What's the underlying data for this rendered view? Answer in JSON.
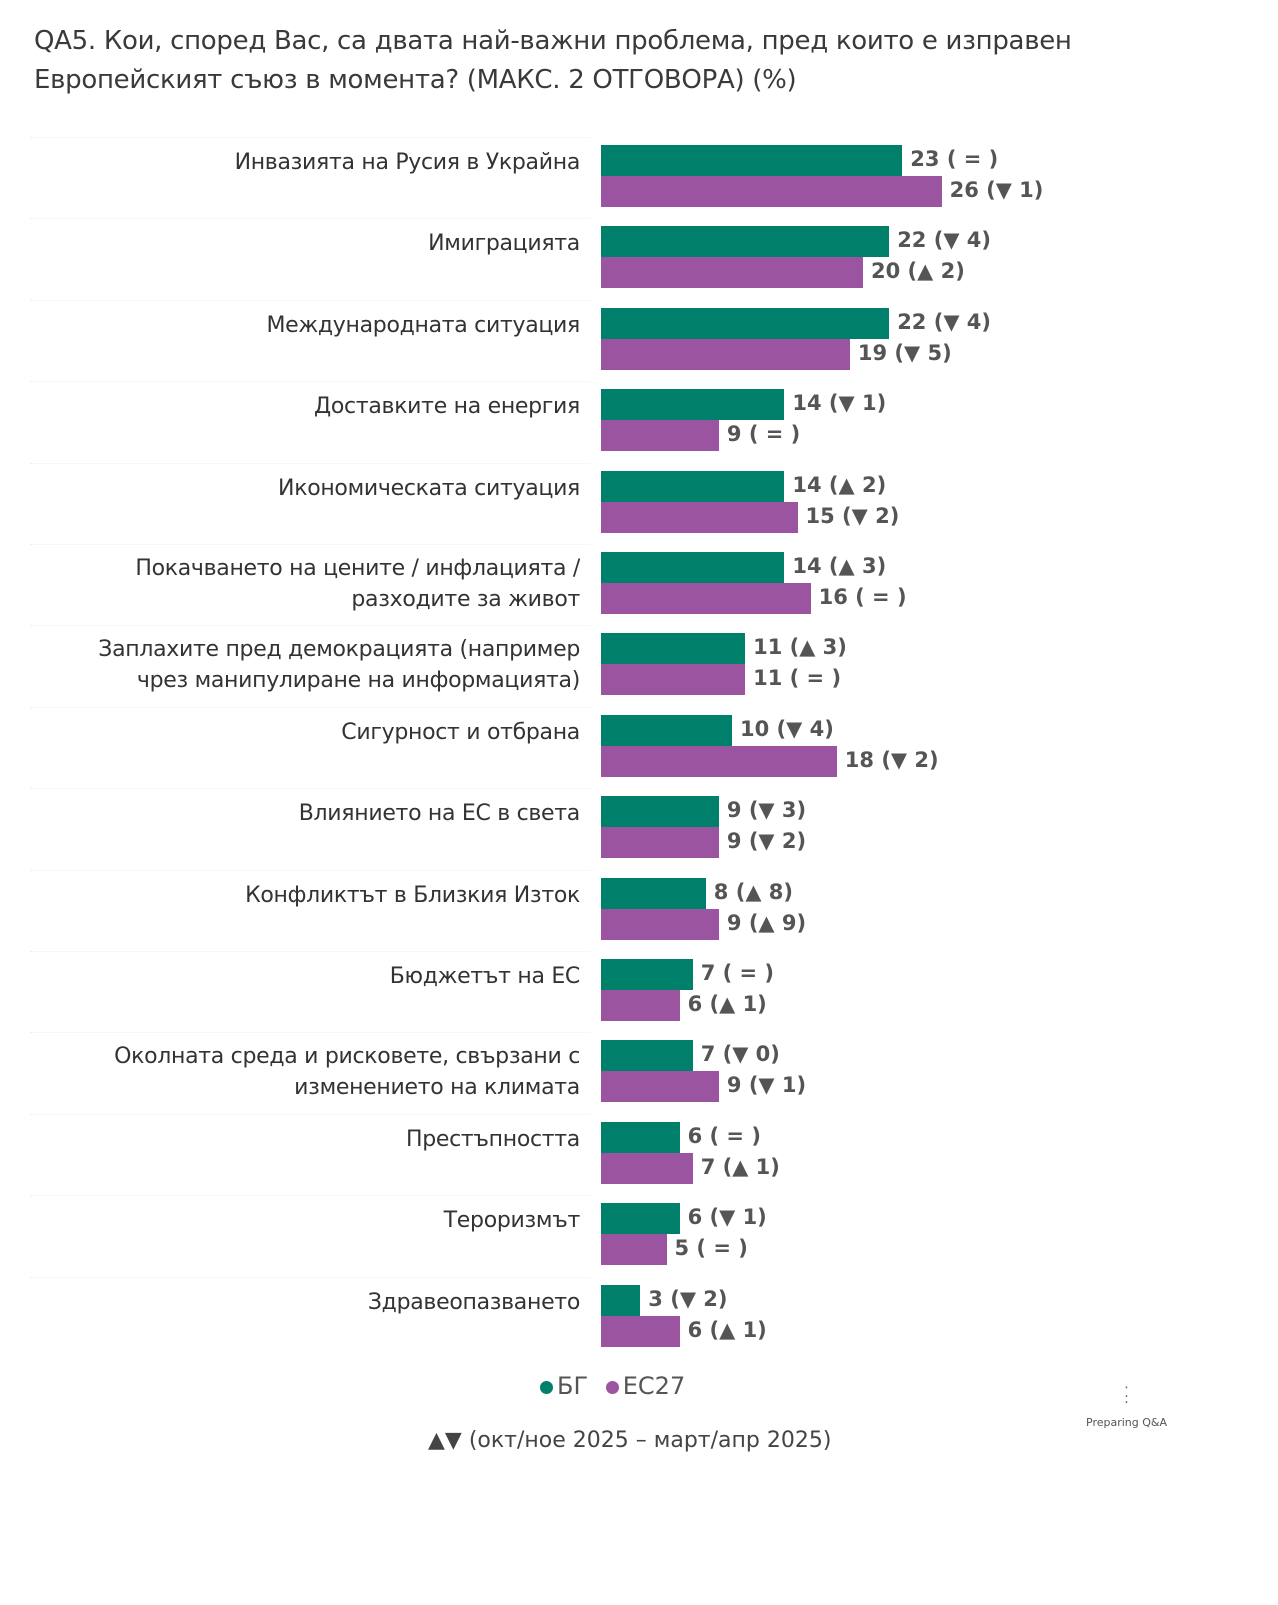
{
  "title": "QA5. Кои, според Вас, са двата най-важни проблема, пред които е изправен Европейският съюз в момента? (МАКС. 2 ОТГОВОРА) (%)",
  "chart_data": {
    "type": "bar",
    "orientation": "horizontal",
    "title": "QA5. Кои, според Вас, са двата най-важни проблема, пред които е изправен Европейският съюз в момента? (МАКС. 2 ОТГОВОРА) (%)",
    "categories": [
      "Инвазията на Русия в Украйна",
      "Имиграцията",
      "Международната ситуация",
      "Доставките на енергия",
      "Икономическата ситуация",
      "Покачването на цените / инфлацията / разходите за живот",
      "Заплахите пред демокрацията (например чрез манипулиране на информацията)",
      "Сигурност и отбрана",
      "Влиянието на ЕС в света",
      "Конфликтът в Близкия Изток",
      "Бюджетът на ЕС",
      "Околната среда и рисковете, свързани с изменението на климата",
      "Престъпността",
      "Тероризмът",
      "Здравеопазването"
    ],
    "series": [
      {
        "name": "БГ",
        "color": "#00806a",
        "values": [
          23,
          22,
          22,
          14,
          14,
          14,
          11,
          10,
          9,
          8,
          7,
          7,
          6,
          6,
          3
        ],
        "labels": [
          "23 ( = )",
          "22 (▼ 4)",
          "22 (▼ 4)",
          "14 (▼ 1)",
          "14 (▲ 2)",
          "14 (▲ 3)",
          "11 (▲ 3)",
          "10 (▼ 4)",
          "9 (▼ 3)",
          "8 (▲ 8)",
          "7 ( = )",
          "7 (▼ 0)",
          "6 ( = )",
          "6 (▼ 1)",
          "3 (▼ 2)"
        ]
      },
      {
        "name": "ЕС27",
        "color": "#9b55a0",
        "values": [
          26,
          20,
          19,
          9,
          15,
          16,
          11,
          18,
          9,
          9,
          6,
          9,
          7,
          5,
          6
        ],
        "labels": [
          "26 (▼ 1)",
          "20 (▲ 2)",
          "19 (▼ 5)",
          "9 ( = )",
          "15 (▼ 2)",
          "16 ( = )",
          "11 ( = )",
          "18 (▼ 2)",
          "9 (▼ 2)",
          "9 (▲ 9)",
          "6 (▲ 1)",
          "9 (▼ 1)",
          "7 (▲ 1)",
          "5 ( = )",
          "6 (▲ 1)"
        ]
      }
    ],
    "xlim": [
      0,
      30
    ],
    "legend": "bottom",
    "note": "▲▼ (окт/ное 2025 – март/апр 2025)"
  },
  "category_lines": [
    [
      "Инвазията на Русия в Украйна"
    ],
    [
      "Имиграцията"
    ],
    [
      "Международната ситуация"
    ],
    [
      "Доставките на енергия"
    ],
    [
      "Икономическата ситуация"
    ],
    [
      "Покачването на цените / инфлацията /",
      "разходите за живот"
    ],
    [
      "Заплахите пред демокрацията (например",
      "чрез манипулиране на информацията)"
    ],
    [
      "Сигурност и отбрана"
    ],
    [
      "Влиянието на ЕС в света"
    ],
    [
      "Конфликтът в Близкия Изток"
    ],
    [
      "Бюджетът на ЕС"
    ],
    [
      "Околната среда и рисковете, свързани с",
      "изменението на климата"
    ],
    [
      "Престъпността"
    ],
    [
      "Тероризмът"
    ],
    [
      "Здравеопазването"
    ]
  ],
  "loader_text": "Preparing Q&A"
}
